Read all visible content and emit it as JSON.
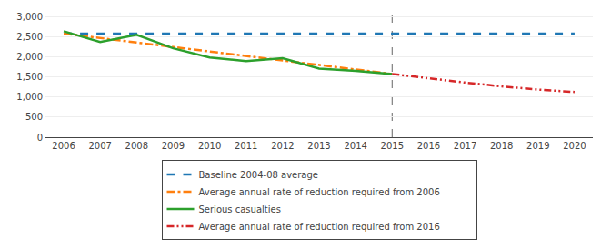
{
  "chart_data": {
    "type": "line",
    "series": [
      {
        "name": "Baseline 2004-08 average",
        "x": [
          2006,
          2020
        ],
        "values": [
          2590,
          2590
        ],
        "line_style": "dash"
      },
      {
        "name": "Average annual rate of reduction required from 2006",
        "x": [
          2006,
          2015
        ],
        "values": [
          2590,
          1580
        ],
        "line_style": "dashdot"
      },
      {
        "name": "Serious casualties",
        "x": [
          2006,
          2007,
          2008,
          2009,
          2010,
          2011,
          2012,
          2013,
          2014,
          2015
        ],
        "values": [
          2646,
          2377,
          2557,
          2222,
          1990,
          1901,
          1974,
          1713,
          1658,
          1580
        ],
        "line_style": "solid"
      },
      {
        "name": "Average annual rate of reduction required from 2016",
        "x": [
          2015,
          2016,
          2017,
          2018,
          2019,
          2020
        ],
        "values": [
          1580,
          1470,
          1365,
          1270,
          1190,
          1130
        ],
        "line_style": "dashdotdot"
      }
    ],
    "vlines": [
      2015
    ],
    "xlim": [
      2005.5,
      2020.5
    ],
    "xticks": [
      2006,
      2007,
      2008,
      2009,
      2010,
      2011,
      2012,
      2013,
      2014,
      2015,
      2016,
      2017,
      2018,
      2019,
      2020
    ],
    "ylim": [
      0,
      3200
    ],
    "yticks": [
      0,
      500,
      {
        "value": 1000,
        "label": "1,000"
      },
      {
        "value": 1500,
        "label": "1,500"
      },
      {
        "value": 2000,
        "label": "2,000"
      },
      {
        "value": 2500,
        "label": "2,500"
      },
      {
        "value": 3000,
        "label": "3,000"
      }
    ],
    "grid": "y",
    "legend": "bottom"
  }
}
